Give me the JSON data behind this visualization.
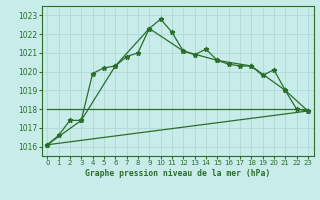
{
  "title": "Graphe pression niveau de la mer (hPa)",
  "bg_color": "#c8ecea",
  "grid_color": "#b0d8d4",
  "line_color": "#2a6e2a",
  "xlim": [
    -0.5,
    23.5
  ],
  "ylim": [
    1015.5,
    1023.5
  ],
  "yticks": [
    1016,
    1017,
    1018,
    1019,
    1020,
    1021,
    1022,
    1023
  ],
  "xticks": [
    0,
    1,
    2,
    3,
    4,
    5,
    6,
    7,
    8,
    9,
    10,
    11,
    12,
    13,
    14,
    15,
    16,
    17,
    18,
    19,
    20,
    21,
    22,
    23
  ],
  "series1_x": [
    0,
    1,
    2,
    3,
    4,
    5,
    6,
    7,
    8,
    9,
    10,
    11,
    12,
    13,
    14,
    15,
    16,
    17,
    18,
    19,
    20,
    21,
    22,
    23
  ],
  "series1_y": [
    1016.1,
    1016.6,
    1017.4,
    1017.4,
    1019.9,
    1020.2,
    1020.3,
    1020.8,
    1021.0,
    1022.3,
    1022.8,
    1022.1,
    1021.1,
    1020.9,
    1021.2,
    1020.6,
    1020.4,
    1020.3,
    1020.3,
    1019.8,
    1020.1,
    1019.0,
    1018.0,
    1017.9
  ],
  "series2_x": [
    0,
    3,
    6,
    9,
    12,
    15,
    18,
    21,
    23
  ],
  "series2_y": [
    1016.1,
    1017.4,
    1020.3,
    1022.3,
    1021.1,
    1020.6,
    1020.3,
    1019.0,
    1017.9
  ],
  "series3_x": [
    0,
    23
  ],
  "series3_y": [
    1018.0,
    1018.0
  ],
  "series4_x": [
    0,
    23
  ],
  "series4_y": [
    1016.1,
    1017.9
  ]
}
